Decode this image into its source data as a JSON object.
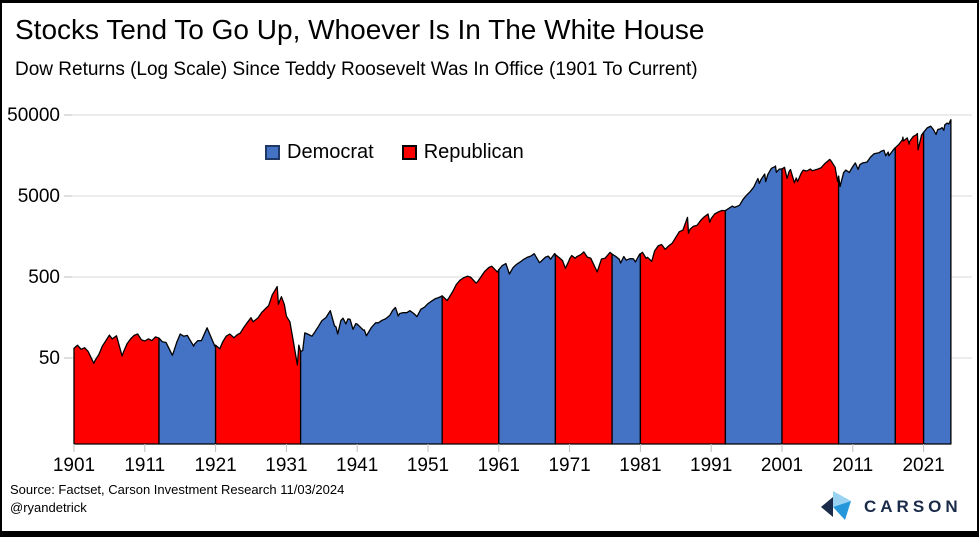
{
  "header": {
    "title": "Stocks Tend To Go Up, Whoever Is In The White House",
    "subtitle": "Dow Returns (Log Scale) Since Teddy Roosevelt Was In Office (1901 To Current)"
  },
  "footer": {
    "source": "Source: Factset, Carson Investment Research 11/03/2024",
    "handle": "@ryandetrick",
    "logo_text": "CARSON"
  },
  "chart_data": {
    "type": "area",
    "scale": "log",
    "series_name": "Dow Jones Industrial Average",
    "legend": [
      {
        "label": "Democrat",
        "color": "#4472C4"
      },
      {
        "label": "Republican",
        "color": "#FF0000"
      }
    ],
    "colors": {
      "Democrat": "#4472C4",
      "Republican": "#FF0000",
      "outline": "#000000",
      "gridline": "#D9D9D9",
      "tick": "#BFBFBF"
    },
    "y_ticks": [
      50,
      500,
      5000,
      50000
    ],
    "x_ticks": [
      1901,
      1911,
      1921,
      1931,
      1941,
      1951,
      1961,
      1971,
      1981,
      1991,
      2001,
      2011,
      2021
    ],
    "xlim": [
      1901,
      2026
    ],
    "ylim": [
      4.5,
      65000
    ],
    "party_segments": [
      {
        "party": "Republican",
        "start": 1901,
        "end": 1913
      },
      {
        "party": "Democrat",
        "start": 1913,
        "end": 1921
      },
      {
        "party": "Republican",
        "start": 1921,
        "end": 1933
      },
      {
        "party": "Democrat",
        "start": 1933,
        "end": 1953
      },
      {
        "party": "Republican",
        "start": 1953,
        "end": 1961
      },
      {
        "party": "Democrat",
        "start": 1961,
        "end": 1969
      },
      {
        "party": "Republican",
        "start": 1969,
        "end": 1977
      },
      {
        "party": "Democrat",
        "start": 1977,
        "end": 1981
      },
      {
        "party": "Republican",
        "start": 1981,
        "end": 1993
      },
      {
        "party": "Democrat",
        "start": 1993,
        "end": 2001
      },
      {
        "party": "Republican",
        "start": 2001,
        "end": 2009
      },
      {
        "party": "Democrat",
        "start": 2009,
        "end": 2017
      },
      {
        "party": "Republican",
        "start": 2017,
        "end": 2021
      },
      {
        "party": "Democrat",
        "start": 2021,
        "end": 2024.85
      }
    ],
    "points": [
      [
        1901,
        66
      ],
      [
        1901.5,
        72
      ],
      [
        1902,
        64
      ],
      [
        1902.5,
        67
      ],
      [
        1903,
        60
      ],
      [
        1903.8,
        43
      ],
      [
        1904,
        47
      ],
      [
        1904.5,
        55
      ],
      [
        1905,
        70
      ],
      [
        1905.5,
        82
      ],
      [
        1906,
        96
      ],
      [
        1906.4,
        86
      ],
      [
        1907,
        94
      ],
      [
        1907.8,
        53
      ],
      [
        1908,
        60
      ],
      [
        1908.5,
        75
      ],
      [
        1909,
        86
      ],
      [
        1909.5,
        95
      ],
      [
        1910,
        99
      ],
      [
        1910.5,
        84
      ],
      [
        1911,
        81
      ],
      [
        1911.5,
        86
      ],
      [
        1912,
        82
      ],
      [
        1912.5,
        91
      ],
      [
        1913,
        88
      ],
      [
        1913.5,
        79
      ],
      [
        1914,
        78
      ],
      [
        1914.9,
        54
      ],
      [
        1915,
        57
      ],
      [
        1915.5,
        78
      ],
      [
        1916,
        99
      ],
      [
        1916.5,
        93
      ],
      [
        1917,
        95
      ],
      [
        1917.9,
        70
      ],
      [
        1918,
        74
      ],
      [
        1918.5,
        82
      ],
      [
        1919,
        82
      ],
      [
        1919.8,
        118
      ],
      [
        1920,
        107
      ],
      [
        1920.9,
        70
      ],
      [
        1921,
        72
      ],
      [
        1921.6,
        65
      ],
      [
        1922,
        79
      ],
      [
        1922.5,
        93
      ],
      [
        1923,
        99
      ],
      [
        1923.6,
        89
      ],
      [
        1924,
        96
      ],
      [
        1924.5,
        102
      ],
      [
        1925,
        120
      ],
      [
        1925.5,
        138
      ],
      [
        1926,
        157
      ],
      [
        1926.3,
        140
      ],
      [
        1927,
        157
      ],
      [
        1927.5,
        182
      ],
      [
        1928,
        202
      ],
      [
        1928.5,
        222
      ],
      [
        1929,
        300
      ],
      [
        1929.7,
        381
      ],
      [
        1929.87,
        230
      ],
      [
        1930,
        248
      ],
      [
        1930.3,
        286
      ],
      [
        1930.7,
        230
      ],
      [
        1931,
        164
      ],
      [
        1931.5,
        140
      ],
      [
        1932,
        78
      ],
      [
        1932.55,
        41
      ],
      [
        1932.75,
        72
      ],
      [
        1933,
        60
      ],
      [
        1933.3,
        62
      ],
      [
        1933.6,
        102
      ],
      [
        1934,
        99
      ],
      [
        1934.6,
        93
      ],
      [
        1935,
        104
      ],
      [
        1935.5,
        122
      ],
      [
        1936,
        144
      ],
      [
        1936.6,
        158
      ],
      [
        1937,
        180
      ],
      [
        1937.2,
        192
      ],
      [
        1937.8,
        125
      ],
      [
        1938,
        121
      ],
      [
        1938.25,
        99
      ],
      [
        1938.7,
        145
      ],
      [
        1939,
        155
      ],
      [
        1939.4,
        132
      ],
      [
        1939.7,
        152
      ],
      [
        1940,
        150
      ],
      [
        1940.4,
        113
      ],
      [
        1940.8,
        133
      ],
      [
        1941,
        131
      ],
      [
        1941.9,
        110
      ],
      [
        1942,
        111
      ],
      [
        1942.3,
        94
      ],
      [
        1943,
        119
      ],
      [
        1943.6,
        136
      ],
      [
        1944,
        136
      ],
      [
        1944.5,
        146
      ],
      [
        1945,
        152
      ],
      [
        1945.6,
        168
      ],
      [
        1946,
        193
      ],
      [
        1946.4,
        210
      ],
      [
        1946.8,
        165
      ],
      [
        1947,
        177
      ],
      [
        1947.5,
        182
      ],
      [
        1948,
        181
      ],
      [
        1948.45,
        192
      ],
      [
        1949,
        177
      ],
      [
        1949.45,
        162
      ],
      [
        1950,
        200
      ],
      [
        1950.5,
        212
      ],
      [
        1951,
        235
      ],
      [
        1951.6,
        255
      ],
      [
        1952,
        269
      ],
      [
        1952.5,
        278
      ],
      [
        1953,
        292
      ],
      [
        1953.7,
        256
      ],
      [
        1954,
        281
      ],
      [
        1954.5,
        332
      ],
      [
        1955,
        404
      ],
      [
        1955.5,
        455
      ],
      [
        1956,
        488
      ],
      [
        1956.6,
        512
      ],
      [
        1957,
        499
      ],
      [
        1957.8,
        420
      ],
      [
        1958,
        436
      ],
      [
        1958.5,
        505
      ],
      [
        1959,
        584
      ],
      [
        1959.6,
        655
      ],
      [
        1960,
        679
      ],
      [
        1960.8,
        575
      ],
      [
        1961,
        616
      ],
      [
        1961.5,
        692
      ],
      [
        1962,
        731
      ],
      [
        1962.5,
        545
      ],
      [
        1963,
        652
      ],
      [
        1963.5,
        715
      ],
      [
        1964,
        763
      ],
      [
        1964.5,
        825
      ],
      [
        1965,
        874
      ],
      [
        1965.5,
        905
      ],
      [
        1966,
        969
      ],
      [
        1966.75,
        750
      ],
      [
        1967,
        786
      ],
      [
        1967.6,
        880
      ],
      [
        1968,
        905
      ],
      [
        1968.3,
        830
      ],
      [
        1968.9,
        975
      ],
      [
        1969,
        944
      ],
      [
        1969.5,
        870
      ],
      [
        1970,
        800
      ],
      [
        1970.4,
        640
      ],
      [
        1970.9,
        790
      ],
      [
        1971,
        839
      ],
      [
        1971.3,
        920
      ],
      [
        1971.8,
        850
      ],
      [
        1972,
        890
      ],
      [
        1972.6,
        945
      ],
      [
        1973,
        1020
      ],
      [
        1973.5,
        880
      ],
      [
        1974,
        851
      ],
      [
        1974.9,
        578
      ],
      [
        1975,
        616
      ],
      [
        1975.5,
        835
      ],
      [
        1976,
        852
      ],
      [
        1976.7,
        1005
      ],
      [
        1977,
        960
      ],
      [
        1977.5,
        900
      ],
      [
        1978,
        831
      ],
      [
        1978.2,
        745
      ],
      [
        1978.65,
        895
      ],
      [
        1979,
        805
      ],
      [
        1979.5,
        842
      ],
      [
        1980,
        839
      ],
      [
        1980.3,
        768
      ],
      [
        1980.9,
        960
      ],
      [
        1981,
        964
      ],
      [
        1981.3,
        1010
      ],
      [
        1981.8,
        850
      ],
      [
        1982,
        875
      ],
      [
        1982.6,
        780
      ],
      [
        1983,
        1047
      ],
      [
        1983.5,
        1210
      ],
      [
        1984,
        1259
      ],
      [
        1984.5,
        1100
      ],
      [
        1985,
        1212
      ],
      [
        1985.5,
        1310
      ],
      [
        1986,
        1547
      ],
      [
        1986.5,
        1810
      ],
      [
        1987,
        1896
      ],
      [
        1987.65,
        2722
      ],
      [
        1987.8,
        1739
      ],
      [
        1988,
        1939
      ],
      [
        1988.5,
        2110
      ],
      [
        1989,
        2169
      ],
      [
        1989.6,
        2550
      ],
      [
        1990,
        2753
      ],
      [
        1990.55,
        2999
      ],
      [
        1990.8,
        2365
      ],
      [
        1991,
        2634
      ],
      [
        1991.5,
        3010
      ],
      [
        1992,
        3169
      ],
      [
        1992.5,
        3310
      ],
      [
        1993,
        3301
      ],
      [
        1993.5,
        3520
      ],
      [
        1994,
        3754
      ],
      [
        1994.3,
        3620
      ],
      [
        1995,
        3834
      ],
      [
        1995.5,
        4550
      ],
      [
        1996,
        5117
      ],
      [
        1996.5,
        5650
      ],
      [
        1997,
        6448
      ],
      [
        1997.6,
        8222
      ],
      [
        1997.8,
        7161
      ],
      [
        1998,
        7908
      ],
      [
        1998.55,
        9337
      ],
      [
        1998.7,
        7539
      ],
      [
        1999,
        9181
      ],
      [
        1999.5,
        11000
      ],
      [
        2000,
        11497
      ],
      [
        2000.08,
        11722
      ],
      [
        2000.2,
        9796
      ],
      [
        2000.6,
        10700
      ],
      [
        2001,
        10788
      ],
      [
        2001.35,
        11300
      ],
      [
        2001.72,
        8236
      ],
      [
        2002,
        10021
      ],
      [
        2002.2,
        10635
      ],
      [
        2002.75,
        7286
      ],
      [
        2003,
        8341
      ],
      [
        2003.2,
        7524
      ],
      [
        2003.7,
        9500
      ],
      [
        2004,
        10453
      ],
      [
        2004.5,
        10150
      ],
      [
        2005,
        10783
      ],
      [
        2005.3,
        10250
      ],
      [
        2006,
        10717
      ],
      [
        2006.5,
        11100
      ],
      [
        2007,
        12463
      ],
      [
        2007.75,
        14164
      ],
      [
        2008,
        13264
      ],
      [
        2008.5,
        11350
      ],
      [
        2008.85,
        7552
      ],
      [
        2009,
        8776
      ],
      [
        2009.2,
        6547
      ],
      [
        2009.7,
        9710
      ],
      [
        2010,
        10428
      ],
      [
        2010.5,
        9774
      ],
      [
        2011,
        11577
      ],
      [
        2011.35,
        12810
      ],
      [
        2011.75,
        10655
      ],
      [
        2012,
        12217
      ],
      [
        2012.4,
        12800
      ],
      [
        2013,
        13104
      ],
      [
        2013.5,
        15100
      ],
      [
        2014,
        16576
      ],
      [
        2014.7,
        17050
      ],
      [
        2015,
        17823
      ],
      [
        2015.4,
        18312
      ],
      [
        2015.65,
        15666
      ],
      [
        2016,
        17425
      ],
      [
        2016.1,
        15660
      ],
      [
        2016.7,
        18500
      ],
      [
        2017,
        19762
      ],
      [
        2017.5,
        21600
      ],
      [
        2018,
        24719
      ],
      [
        2018.07,
        26616
      ],
      [
        2018.15,
        23860
      ],
      [
        2018.7,
        26100
      ],
      [
        2018.95,
        21792
      ],
      [
        2019,
        23327
      ],
      [
        2019.55,
        27200
      ],
      [
        2020,
        28538
      ],
      [
        2020.12,
        29551
      ],
      [
        2020.23,
        18592
      ],
      [
        2020.7,
        28200
      ],
      [
        2021,
        30606
      ],
      [
        2021.5,
        34600
      ],
      [
        2021.9,
        36100
      ],
      [
        2022,
        36338
      ],
      [
        2022.4,
        32900
      ],
      [
        2022.75,
        28726
      ],
      [
        2023,
        33147
      ],
      [
        2023.4,
        33800
      ],
      [
        2023.6,
        34900
      ],
      [
        2023.85,
        32400
      ],
      [
        2024,
        37690
      ],
      [
        2024.3,
        39700
      ],
      [
        2024.55,
        38600
      ],
      [
        2024.85,
        43700
      ]
    ]
  }
}
